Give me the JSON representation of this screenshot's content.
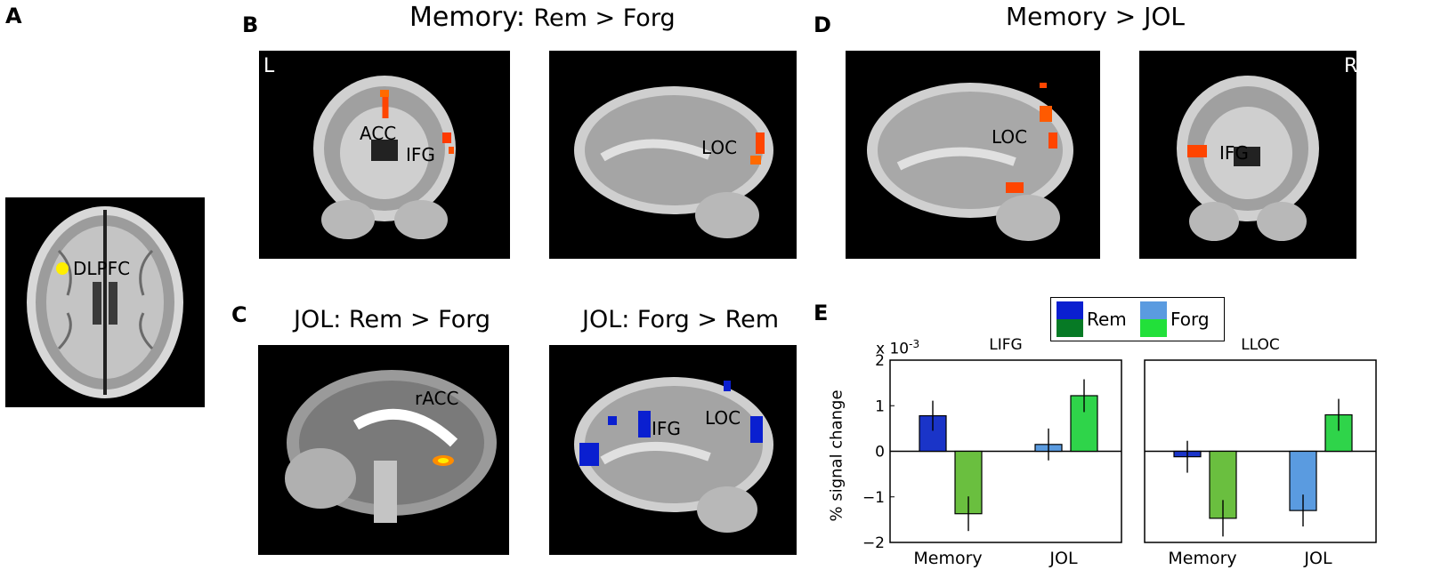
{
  "panel_letters": [
    "A",
    "B",
    "C",
    "D",
    "E"
  ],
  "titles": {
    "b_bold": "Memory:",
    "b_rest": "Rem > Forg",
    "d": "Memory > JOL",
    "c_left": "JOL: Rem > Forg",
    "c_right": "JOL: Forg > Rem"
  },
  "orientation": {
    "left": "L",
    "right": "R"
  },
  "region_labels": {
    "a": "DLPFC",
    "b_acc": "ACC",
    "b_ifg": "IFG",
    "b_loc": "LOC",
    "d_loc": "LOC",
    "d_ifg": "IFG",
    "c_racc": "rACC",
    "c_ifg": "IFG",
    "c_loc": "LOC"
  },
  "colors": {
    "activation_hot": "#ff4500",
    "activation_yellow": "#ffee00",
    "activation_blue": "#0a1fd0",
    "rem_memory": "#1a34c8",
    "forg_memory": "#6abf3f",
    "rem_jol": "#5a9be0",
    "forg_jol": "#2fd44a",
    "legend_rem_dark": "#0a1fd0",
    "legend_rem_green": "#067a25",
    "legend_forg_light": "#5a9be0",
    "legend_forg_green": "#22e03a"
  },
  "legend": {
    "rem": "Rem",
    "forg": "Forg"
  },
  "chart_data": [
    {
      "type": "bar",
      "title": "LIFG",
      "ylabel": "% signal change",
      "scale_label": "x 10",
      "scale_exp": "-3",
      "categories": [
        "Memory",
        "JOL"
      ],
      "ylim": [
        -2,
        2
      ],
      "yticks": [
        -2,
        -1,
        0,
        1,
        2
      ],
      "ytick_labels": [
        "−2",
        "−1",
        "0",
        "1",
        "2"
      ],
      "series": [
        {
          "name": "Rem",
          "values": [
            0.78,
            0.15
          ],
          "errors": [
            0.33,
            0.35
          ]
        },
        {
          "name": "Forg",
          "values": [
            -1.37,
            1.22
          ],
          "errors": [
            0.38,
            0.36
          ]
        }
      ]
    },
    {
      "type": "bar",
      "title": "LLOC",
      "categories": [
        "Memory",
        "JOL"
      ],
      "ylim": [
        -2,
        2
      ],
      "series": [
        {
          "name": "Rem",
          "values": [
            -0.12,
            -1.3
          ],
          "errors": [
            0.35,
            0.35
          ]
        },
        {
          "name": "Forg",
          "values": [
            -1.47,
            0.8
          ],
          "errors": [
            0.4,
            0.35
          ]
        }
      ]
    }
  ]
}
